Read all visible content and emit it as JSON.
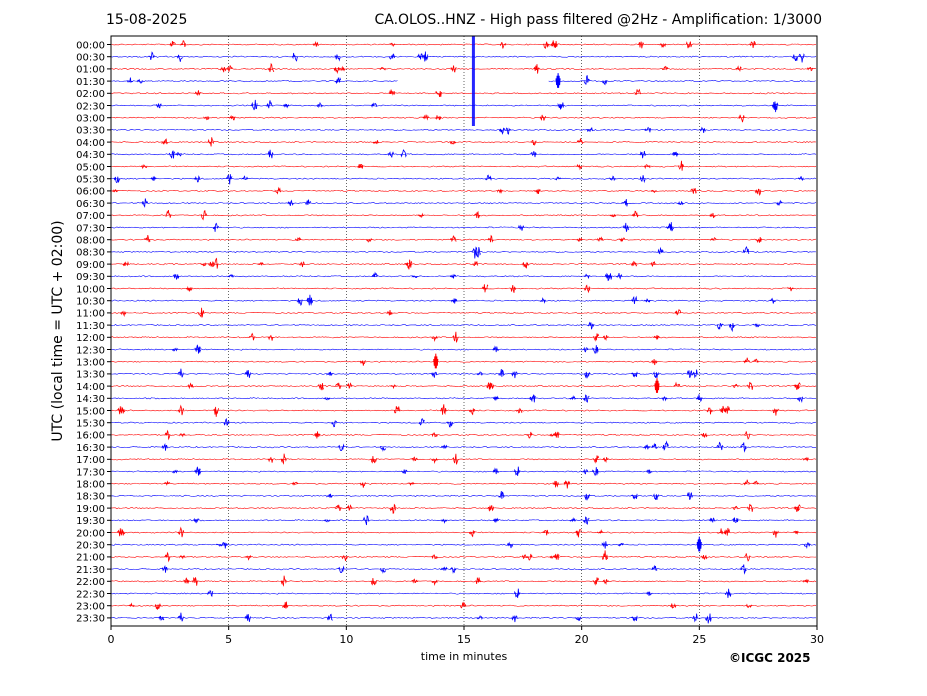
{
  "header": {
    "date": "15-08-2025",
    "title": "CA.OLOS..HNZ - High pass filtered @2Hz - Amplification: 1/3000"
  },
  "footer": {
    "copyright": "©ICGC 2025"
  },
  "chart_data": {
    "type": "line",
    "subtype": "helicorder",
    "xlabel": "time in minutes",
    "ylabel": "UTC (local time = UTC + 02:00)",
    "xlim": [
      0,
      30
    ],
    "xticks": [
      0,
      5,
      10,
      15,
      20,
      25,
      30
    ],
    "xtick_labels": [
      "0",
      "5",
      "10",
      "15",
      "20",
      "25",
      "30"
    ],
    "vertical_gridlines": [
      5,
      10,
      15,
      20,
      25
    ],
    "rows": [
      "00:00",
      "00:30",
      "01:00",
      "01:30",
      "02:00",
      "02:30",
      "03:00",
      "03:30",
      "04:00",
      "04:30",
      "05:00",
      "05:30",
      "06:00",
      "06:30",
      "07:00",
      "07:30",
      "08:00",
      "08:30",
      "09:00",
      "09:30",
      "10:00",
      "10:30",
      "11:00",
      "11:30",
      "12:00",
      "12:30",
      "13:00",
      "13:30",
      "14:00",
      "14:30",
      "15:00",
      "15:30",
      "16:00",
      "16:30",
      "17:00",
      "17:30",
      "18:00",
      "18:30",
      "19:00",
      "19:30",
      "20:00",
      "20:30",
      "21:00",
      "21:30",
      "22:00",
      "22:30",
      "23:00",
      "23:30"
    ],
    "trace_colors": [
      "#ff0000",
      "#0000ff"
    ],
    "gap": {
      "row": "01:30",
      "x_range": [
        12.2,
        18.6
      ]
    },
    "notable_events": [
      {
        "row": "00:00",
        "x": 15.4,
        "amplitude": "very large"
      },
      {
        "row": "01:30",
        "x": 19.0,
        "amplitude": "medium"
      },
      {
        "row": "13:00",
        "x": 13.8,
        "amplitude": "medium"
      },
      {
        "row": "14:00",
        "x": 23.2,
        "amplitude": "medium"
      },
      {
        "row": "20:30",
        "x": 25.0,
        "amplitude": "medium"
      }
    ]
  }
}
